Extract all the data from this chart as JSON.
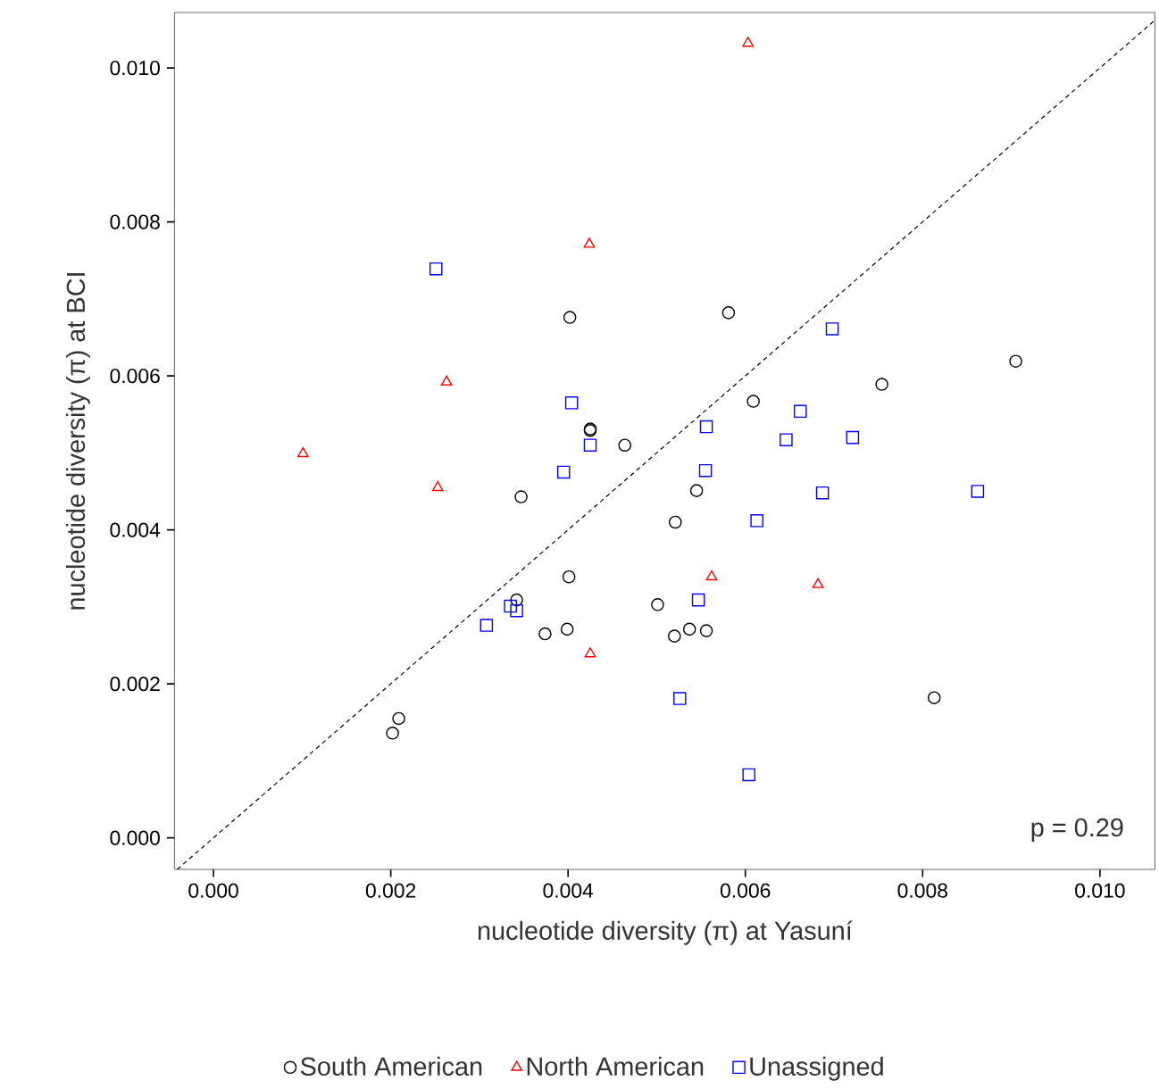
{
  "chart_data": {
    "type": "scatter",
    "xlabel": "nucleotide diversity (π) at Yasuní",
    "ylabel": "nucleotide diversity (π) at BCI",
    "xlim": [
      -0.00044,
      0.01062
    ],
    "ylim": [
      -0.00041,
      0.01072
    ],
    "xticks": [
      {
        "value": 0,
        "label": "0.000"
      },
      {
        "value": 0.002,
        "label": "0.002"
      },
      {
        "value": 0.004,
        "label": "0.004"
      },
      {
        "value": 0.006,
        "label": "0.006"
      },
      {
        "value": 0.008,
        "label": "0.008"
      },
      {
        "value": 0.01,
        "label": "0.010"
      }
    ],
    "yticks": [
      {
        "value": 0,
        "label": "0.000"
      },
      {
        "value": 0.002,
        "label": "0.002"
      },
      {
        "value": 0.004,
        "label": "0.004"
      },
      {
        "value": 0.006,
        "label": "0.006"
      },
      {
        "value": 0.008,
        "label": "0.008"
      },
      {
        "value": 0.01,
        "label": "0.010"
      }
    ],
    "legend": "bottom",
    "annotations": [
      "p = 0.29"
    ],
    "series": [
      {
        "name": "South American",
        "color": "#000000",
        "marker": "circle",
        "x": [
          0.00202,
          0.00209,
          0.00347,
          0.00342,
          0.00401,
          0.00374,
          0.00399,
          0.00464,
          0.00501,
          0.00425,
          0.00425,
          0.00402,
          0.00581,
          0.00609,
          0.00754,
          0.00905,
          0.00521,
          0.00545,
          0.0052,
          0.00537,
          0.00556,
          0.00813
        ],
        "values": [
          0.00136,
          0.00155,
          0.00443,
          0.00309,
          0.00339,
          0.00265,
          0.00271,
          0.0051,
          0.00303,
          0.00531,
          0.00529,
          0.00676,
          0.00682,
          0.00567,
          0.00589,
          0.00619,
          0.0041,
          0.00451,
          0.00262,
          0.00271,
          0.00269,
          0.00182
        ]
      },
      {
        "name": "North American",
        "color": "#ff0000",
        "marker": "triangle",
        "x": [
          0.00101,
          0.00253,
          0.00263,
          0.00424,
          0.00603,
          0.00425,
          0.00562,
          0.00682
        ],
        "values": [
          0.00499,
          0.00455,
          0.00592,
          0.00771,
          0.01032,
          0.00239,
          0.00339,
          0.00329
        ]
      },
      {
        "name": "Unassigned",
        "color": "#0000ff",
        "marker": "square",
        "x": [
          0.00251,
          0.00404,
          0.00425,
          0.00395,
          0.00308,
          0.00335,
          0.00342,
          0.00698,
          0.00556,
          0.00662,
          0.00646,
          0.00721,
          0.00555,
          0.00687,
          0.00862,
          0.00613,
          0.00547,
          0.00526,
          0.00604
        ],
        "values": [
          0.00739,
          0.00565,
          0.0051,
          0.00475,
          0.00276,
          0.00301,
          0.00295,
          0.00661,
          0.00534,
          0.00554,
          0.00517,
          0.0052,
          0.00477,
          0.00448,
          0.0045,
          0.00412,
          0.00309,
          0.00181,
          0.00082
        ]
      },
      {
        "type": "line",
        "color": "#000000",
        "line_style": "dashed",
        "marker": "none",
        "x": [
          -0.00041,
          0.01062
        ],
        "values": [
          -0.00041,
          0.01062
        ]
      }
    ]
  }
}
